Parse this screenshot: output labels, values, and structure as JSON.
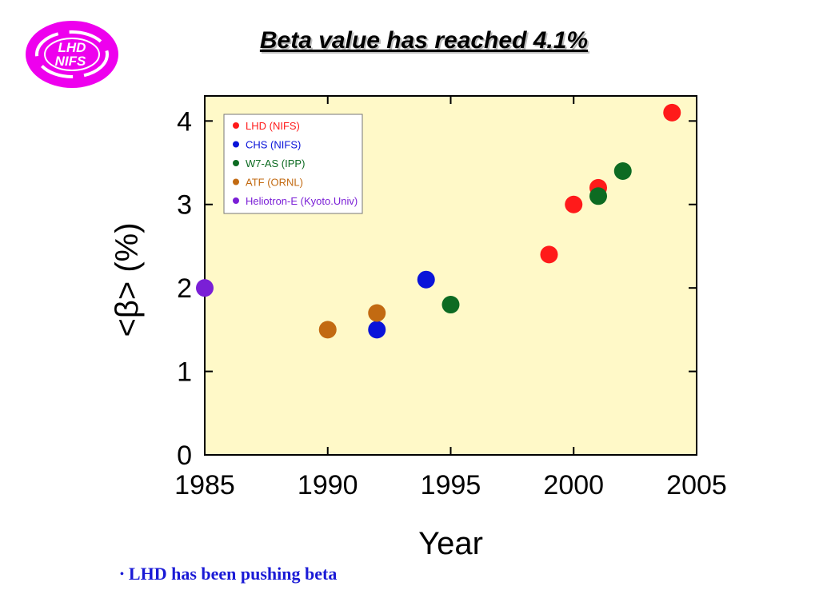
{
  "slide": {
    "title": "Beta value has reached 4.1%",
    "logo_text": [
      "LHD",
      "NIFS"
    ],
    "bullet": "LHD has been pushing beta"
  },
  "colors": {
    "logo": "#ee00ee",
    "plot_bg": "#fff9c8",
    "bullet_text": "#1a1ad6"
  },
  "chart_data": {
    "type": "scatter",
    "title": "",
    "xlabel": "Year",
    "ylabel": "<β> (%)",
    "xlim": [
      1985,
      2005
    ],
    "ylim": [
      0,
      4.3
    ],
    "xticks": [
      1985,
      1990,
      1995,
      2000,
      2005
    ],
    "yticks": [
      0,
      1,
      2,
      3,
      4
    ],
    "grid": false,
    "legend_position": "top-left",
    "series": [
      {
        "name": "LHD (NIFS)",
        "color": "#ff1a1a",
        "points": [
          [
            1999,
            2.4
          ],
          [
            2000,
            3.0
          ],
          [
            2001,
            3.2
          ],
          [
            2004,
            4.1
          ]
        ]
      },
      {
        "name": "CHS (NIFS)",
        "color": "#0a14d9",
        "points": [
          [
            1992,
            1.5
          ],
          [
            1994,
            2.1
          ]
        ]
      },
      {
        "name": "W7-AS (IPP)",
        "color": "#0d6b22",
        "points": [
          [
            1995,
            1.8
          ],
          [
            2001,
            3.1
          ],
          [
            2002,
            3.4
          ]
        ]
      },
      {
        "name": "ATF (ORNL)",
        "color": "#c26a12",
        "points": [
          [
            1990,
            1.5
          ],
          [
            1992,
            1.7
          ]
        ]
      },
      {
        "name": "Heliotron-E (Kyoto.Univ)",
        "color": "#7a1fd6",
        "points": [
          [
            1985,
            2.0
          ]
        ]
      }
    ]
  }
}
